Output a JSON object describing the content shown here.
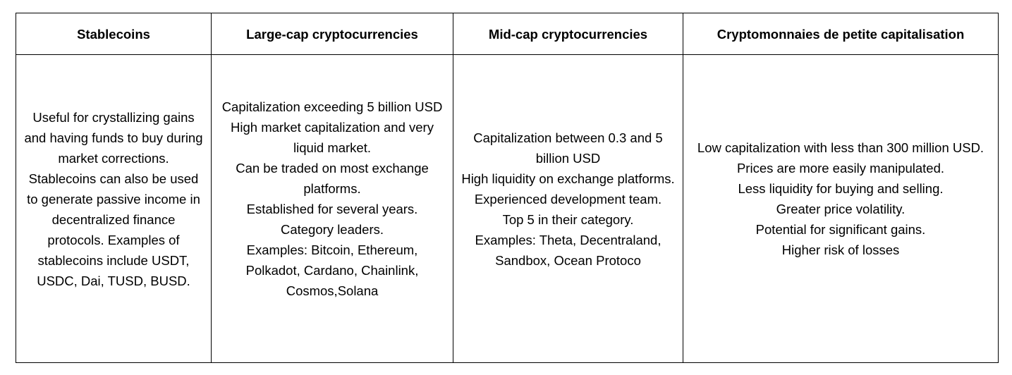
{
  "table": {
    "headers": [
      "Stablecoins",
      "Large-cap cryptocurrencies",
      "Mid-cap cryptocurrencies",
      "Cryptomonnaies de petite capitalisation"
    ],
    "cells": [
      "Useful for crystallizing gains and having funds to buy during market corrections. Stablecoins can also be used to generate passive income in decentralized finance protocols. Examples of stablecoins include USDT, USDC, Dai, TUSD, BUSD.",
      "Capitalization exceeding 5 billion USD\nHigh market capitalization and very liquid market.\nCan be traded on most exchange platforms.\nEstablished for several years.\nCategory leaders.\nExamples: Bitcoin, Ethereum, Polkadot, Cardano, Chainlink, Cosmos,Solana",
      "Capitalization between 0.3 and 5 billion USD\nHigh liquidity on exchange platforms.\nExperienced development team.\nTop 5 in their category.\nExamples: Theta, Decentraland, Sandbox, Ocean Protoco",
      "Low capitalization with less than 300 million USD.\nPrices are more easily manipulated.\nLess liquidity for buying and selling.\nGreater price volatility.\nPotential for significant gains.\nHigher risk of losses"
    ]
  }
}
